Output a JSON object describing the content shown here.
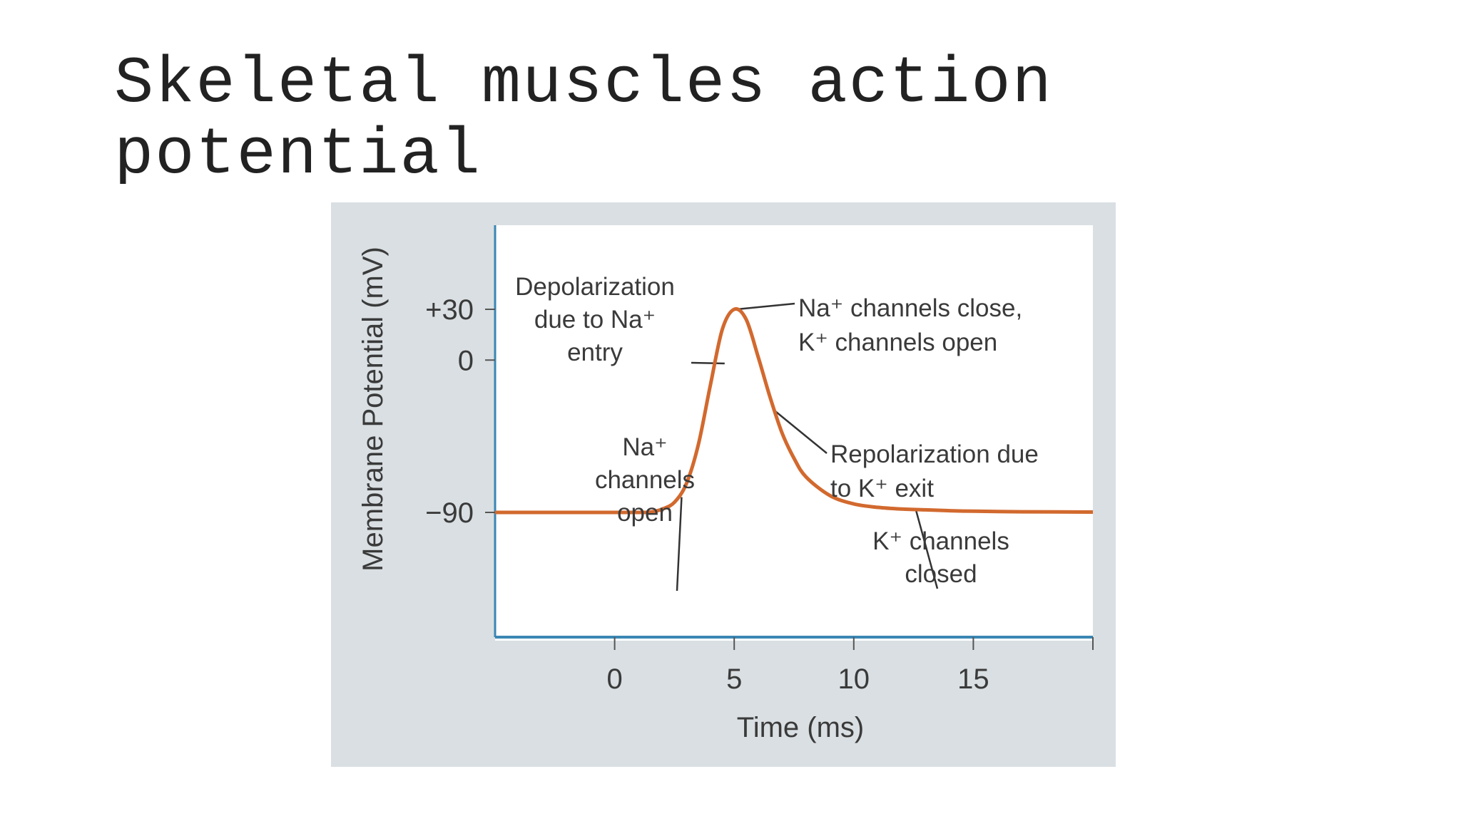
{
  "slide": {
    "title": "Skeletal muscles action potential"
  },
  "colors": {
    "panel_background": "#d9dfe2",
    "plot_background": "#ffffff",
    "axis": "#3a86b4",
    "curve": "#d2692e",
    "text": "#3a3a3a"
  },
  "chart_data": {
    "type": "line",
    "title": "",
    "xlabel": "Time (ms)",
    "ylabel": "Membrane Potential (mV)",
    "xlim": [
      -5,
      20
    ],
    "ylim": [
      -90,
      30
    ],
    "x_ticks": [
      {
        "value": 0,
        "label": "0"
      },
      {
        "value": 5,
        "label": "5"
      },
      {
        "value": 10,
        "label": "10"
      },
      {
        "value": 15,
        "label": "15"
      },
      {
        "value": 20,
        "label": ""
      }
    ],
    "y_ticks": [
      {
        "value": 30,
        "label": "+30"
      },
      {
        "value": 0,
        "label": "0"
      },
      {
        "value": -90,
        "label": "−90"
      }
    ],
    "grid": false,
    "series": [
      {
        "x": [
          -5,
          -2,
          0,
          1,
          1.5,
          2,
          2.5,
          3,
          3.5,
          4,
          4.5,
          5,
          5.5,
          6,
          6.5,
          7,
          7.5,
          8,
          9,
          10,
          11,
          12,
          13,
          14,
          15,
          17,
          20
        ],
        "y": [
          -90,
          -90,
          -90,
          -90,
          -89.8,
          -88,
          -84,
          -73,
          -50,
          -15,
          18,
          30,
          24,
          2,
          -22,
          -43,
          -58,
          -69,
          -80,
          -85,
          -87,
          -88,
          -88.5,
          -89,
          -89.3,
          -89.6,
          -89.8
        ]
      }
    ],
    "annotations": [
      {
        "lines": [
          "Depolarization",
          "due to Na⁺",
          "entry"
        ],
        "target": {
          "x": 4.6,
          "y": -2
        }
      },
      {
        "lines": [
          "Na⁺ channels close,",
          "K⁺ channels open"
        ],
        "target": {
          "x": 5.1,
          "y": 30
        }
      },
      {
        "lines": [
          "Na⁺",
          "channels",
          "open"
        ],
        "target": {
          "x": 2.8,
          "y": -81
        }
      },
      {
        "lines": [
          "Repolarization due",
          "to K⁺ exit"
        ],
        "target": {
          "x": 6.7,
          "y": -30
        }
      },
      {
        "lines": [
          "K⁺ channels",
          "closed"
        ],
        "target": {
          "x": 12.6,
          "y": -88.6
        }
      }
    ]
  }
}
